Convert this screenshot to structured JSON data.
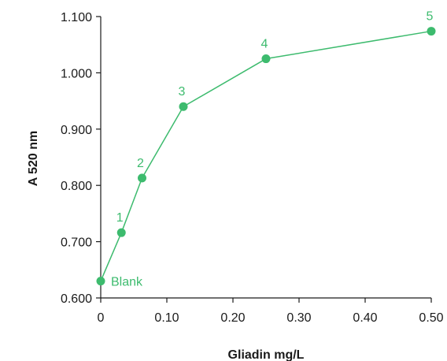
{
  "chart_data": {
    "type": "line",
    "title": "",
    "xlabel": "Gliadin mg/L",
    "ylabel": "A 520 nm",
    "xlim": [
      0,
      0.5
    ],
    "ylim": [
      0.6,
      1.1
    ],
    "x_ticks": [
      "0",
      "0.10",
      "0.20",
      "0.30",
      "0.40",
      "0.50"
    ],
    "y_ticks": [
      "0.600",
      "0.700",
      "0.800",
      "0.900",
      "1.000",
      "1.100"
    ],
    "grid": false,
    "color": "#3dbb6e",
    "series": [
      {
        "x": [
          0,
          0.03125,
          0.0625,
          0.125,
          0.25,
          0.5
        ],
        "y": [
          0.63,
          0.716,
          0.813,
          0.94,
          1.025,
          1.074
        ],
        "point_labels": [
          "Blank",
          "1",
          "2",
          "3",
          "4",
          "5"
        ]
      }
    ]
  }
}
